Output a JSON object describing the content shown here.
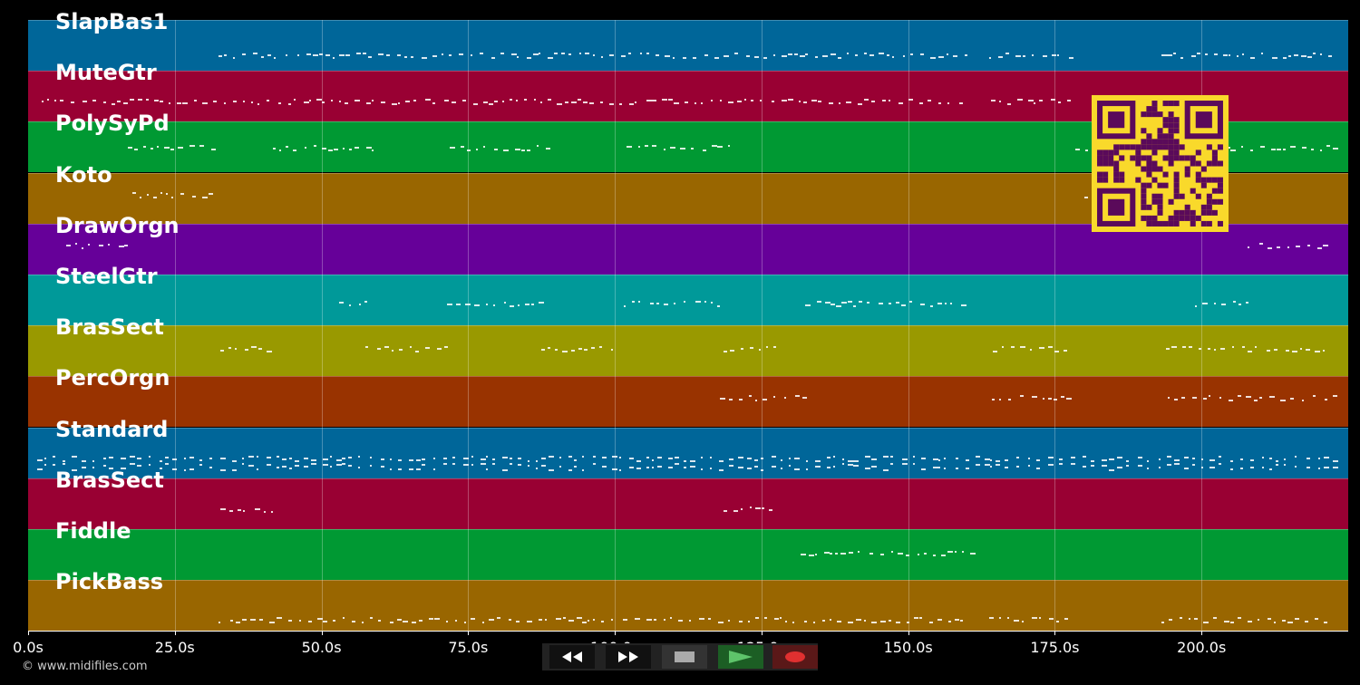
{
  "tracks": [
    {
      "name": "SlapBas1",
      "color": "#006699"
    },
    {
      "name": "MuteGtr",
      "color": "#990033"
    },
    {
      "name": "PolySyPd",
      "color": "#009933"
    },
    {
      "name": "Koto",
      "color": "#996600"
    },
    {
      "name": "DrawOrgn",
      "color": "#660099"
    },
    {
      "name": "SteelGtr",
      "color": "#009999"
    },
    {
      "name": "BrasSect",
      "color": "#999900"
    },
    {
      "name": "PercOrgn",
      "color": "#993300"
    },
    {
      "name": "Standard",
      "color": "#006699"
    },
    {
      "name": "BrasSect",
      "color": "#990033"
    },
    {
      "name": "Fiddle",
      "color": "#009933"
    },
    {
      "name": "PickBass",
      "color": "#996600"
    }
  ],
  "time_axis": {
    "ticks": [
      "0.0s",
      "25.0s",
      "50.0s",
      "75.0s",
      "100.0s",
      "125.0s",
      "150.0s",
      "175.0s",
      "200.0s"
    ],
    "max_seconds": 225
  },
  "footer": {
    "copyright": "© www.midifiles.com"
  },
  "transport": {
    "buttons": [
      {
        "name": "rewind-button",
        "icon": "rewind-icon"
      },
      {
        "name": "fast-forward-button",
        "icon": "fast-forward-icon"
      },
      {
        "name": "stop-button",
        "icon": "stop-icon"
      },
      {
        "name": "play-button",
        "icon": "play-icon"
      },
      {
        "name": "record-button",
        "icon": "record-icon"
      }
    ]
  },
  "qr_code": {
    "color": "#f9d92b",
    "module_color": "#5a0a5a"
  }
}
